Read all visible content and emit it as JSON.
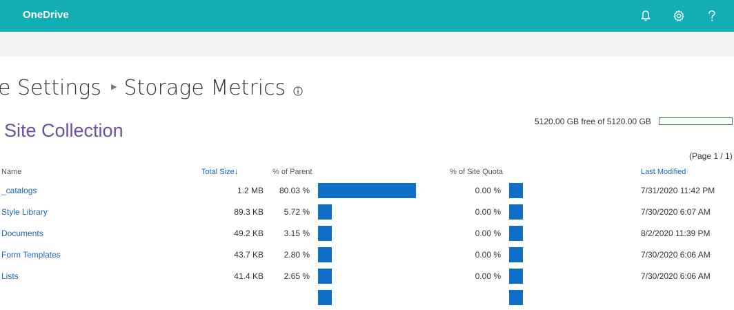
{
  "app": {
    "title": "OneDrive"
  },
  "breadcrumb": {
    "parent": "e Settings",
    "current": "Storage Metrics"
  },
  "site": {
    "title": "Site Collection"
  },
  "quota": {
    "text": "5120.00 GB free of 5120.00 GB",
    "used_fraction": 0.0
  },
  "paging": {
    "text": "(Page 1 / 1)"
  },
  "columns": {
    "name": "Name",
    "total_size": "Total Size",
    "pct_parent": "% of Parent",
    "pct_quota": "% of Site Quota",
    "last_modified": "Last Modified"
  },
  "rows": [
    {
      "name": "_catalogs",
      "size": "1.2 MB",
      "pct": "80.03 %",
      "pct_value": 80.03,
      "quota": "0.00 %",
      "modified": "7/31/2020 11:42 PM"
    },
    {
      "name": "Style Library",
      "size": "89.3 KB",
      "pct": "5.72 %",
      "pct_value": 5.72,
      "quota": "0.00 %",
      "modified": "7/30/2020 6:07 AM"
    },
    {
      "name": "Documents",
      "size": "49.2 KB",
      "pct": "3.15 %",
      "pct_value": 3.15,
      "quota": "0.00 %",
      "modified": "8/2/2020 11:39 PM"
    },
    {
      "name": "Form Templates",
      "size": "43.7 KB",
      "pct": "2.80 %",
      "pct_value": 2.8,
      "quota": "0.00 %",
      "modified": "7/30/2020 6:06 AM"
    },
    {
      "name": "Lists",
      "size": "41.4 KB",
      "pct": "2.65 %",
      "pct_value": 2.65,
      "quota": "0.00 %",
      "modified": "7/30/2020 6:06 AM"
    },
    {
      "name": "",
      "size": "",
      "pct": "",
      "pct_value": 2.5,
      "quota": "",
      "modified": ""
    }
  ],
  "icons": {
    "bell": "bell-icon",
    "settings": "gear-icon",
    "help": "help-icon",
    "info": "info-icon",
    "sort": "sort-down-arrow-icon"
  },
  "colors": {
    "header": "#13aeb4",
    "bar": "#0f6fc6",
    "site_title": "#6d4fa3",
    "link": "#1e64b4",
    "quota_border": "#3a8f3a"
  }
}
